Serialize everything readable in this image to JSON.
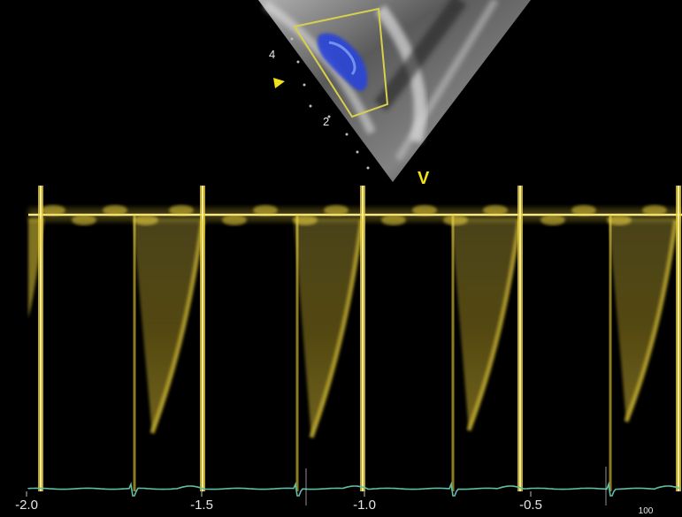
{
  "view": {
    "mode": "Pulsed-wave Doppler",
    "marker_label": "V",
    "depth_labels": [
      "4",
      "2"
    ],
    "time_axis_labels": [
      "-2.0",
      "-1.5",
      "-1.0",
      "-0.5"
    ],
    "corner_label": "100"
  },
  "colors": {
    "background": "#000000",
    "doppler_yellow": "#e8cf3a",
    "ecg_green": "#5fbfa6",
    "color_flow_blue": "#2a45d8",
    "sample_box": "#d8d04a"
  },
  "icons": [
    "sector-image",
    "sample-volume-box",
    "color-flow-jet",
    "focus-marker-icon",
    "ecg-trace"
  ]
}
